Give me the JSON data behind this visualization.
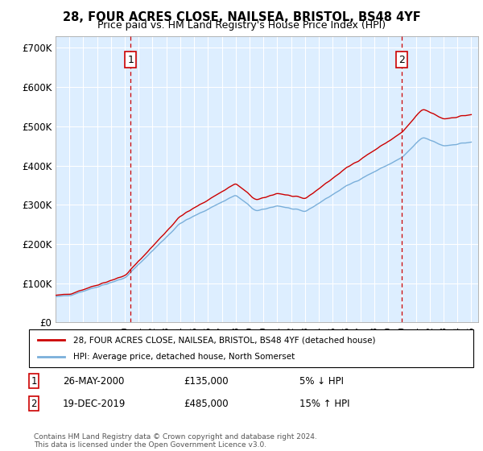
{
  "title": "28, FOUR ACRES CLOSE, NAILSEA, BRISTOL, BS48 4YF",
  "subtitle": "Price paid vs. HM Land Registry's House Price Index (HPI)",
  "ylabel_ticks": [
    "£0",
    "£100K",
    "£200K",
    "£300K",
    "£400K",
    "£500K",
    "£600K",
    "£700K"
  ],
  "ylim": [
    0,
    730000
  ],
  "xlim_start": 1995.0,
  "xlim_end": 2025.5,
  "sale1_year": 2000.41,
  "sale2_year": 2019.96,
  "sale1_label": "1",
  "sale2_label": "2",
  "legend_property": "28, FOUR ACRES CLOSE, NAILSEA, BRISTOL, BS48 4YF (detached house)",
  "legend_hpi": "HPI: Average price, detached house, North Somerset",
  "note1_num": "1",
  "note1_date": "26-MAY-2000",
  "note1_price": "£135,000",
  "note1_rel": "5% ↓ HPI",
  "note2_num": "2",
  "note2_date": "19-DEC-2019",
  "note2_price": "£485,000",
  "note2_rel": "15% ↑ HPI",
  "footer": "Contains HM Land Registry data © Crown copyright and database right 2024.\nThis data is licensed under the Open Government Licence v3.0.",
  "bg_color": "#ddeeff",
  "line_color_property": "#cc0000",
  "line_color_hpi": "#7aafda",
  "grid_color": "#ffffff"
}
